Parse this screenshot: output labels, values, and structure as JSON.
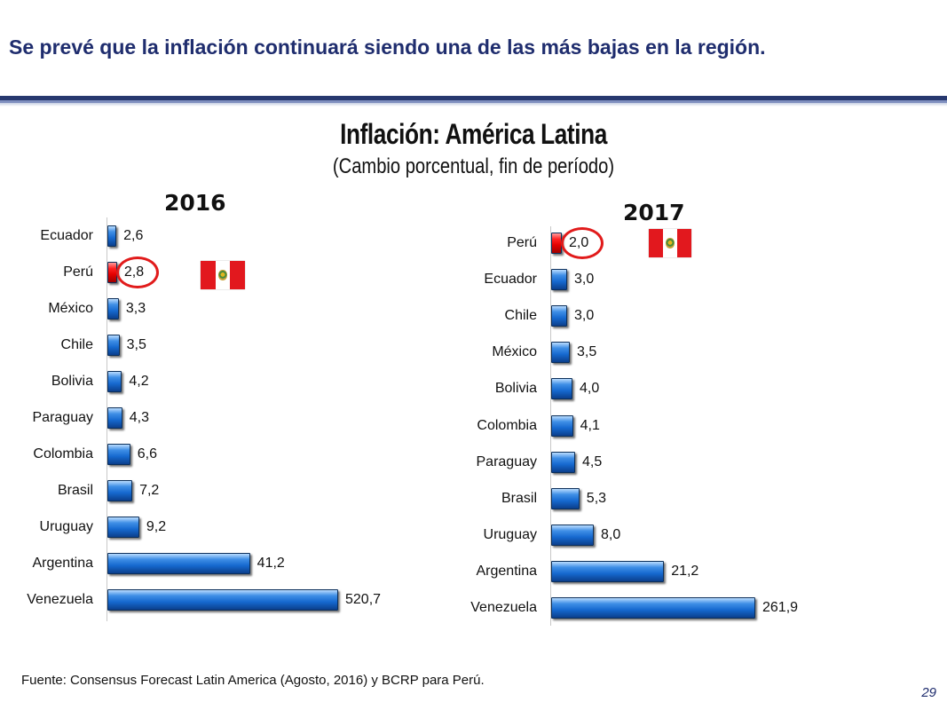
{
  "headline": "Se prevé que la inflación continuará siendo una de las más bajas en la región.",
  "colors": {
    "bar": "#1669cf",
    "highlight_bar": "#e30000",
    "headline": "#1f2d6e",
    "circle": "#e11b1b"
  },
  "chart_data": [
    {
      "type": "bar",
      "orientation": "horizontal",
      "title": "Inflación: América Latina",
      "subtitle": "(Cambio porcentual, fin de período)",
      "year": "2016",
      "categories": [
        "Ecuador",
        "Perú",
        "México",
        "Chile",
        "Bolivia",
        "Paraguay",
        "Colombia",
        "Brasil",
        "Uruguay",
        "Argentina",
        "Venezuela"
      ],
      "values": [
        2.6,
        2.8,
        3.3,
        3.5,
        4.2,
        4.3,
        6.6,
        7.2,
        9.2,
        41.2,
        520.7
      ],
      "labels": [
        "2,6",
        "2,8",
        "3,3",
        "3,5",
        "4,2",
        "4,3",
        "6,6",
        "7,2",
        "9,2",
        "41,2",
        "520,7"
      ],
      "highlight": "Perú",
      "scale": "broken (non-linear)"
    },
    {
      "type": "bar",
      "orientation": "horizontal",
      "year": "2017",
      "categories": [
        "Perú",
        "Ecuador",
        "Chile",
        "México",
        "Bolivia",
        "Colombia",
        "Paraguay",
        "Brasil",
        "Uruguay",
        "Argentina",
        "Venezuela"
      ],
      "values": [
        2.0,
        3.0,
        3.0,
        3.5,
        4.0,
        4.1,
        4.5,
        5.3,
        8.0,
        21.2,
        261.9
      ],
      "labels": [
        "2,0",
        "3,0",
        "3,0",
        "3,5",
        "4,0",
        "4,1",
        "4,5",
        "5,3",
        "8,0",
        "21,2",
        "261,9"
      ],
      "highlight": "Perú",
      "scale": "broken (non-linear)"
    }
  ],
  "icons": [
    "peru-flag-icon",
    "highlight-circle-icon"
  ],
  "source": "Fuente: Consensus Forecast Latin America  (Agosto, 2016) y BCRP para Perú.",
  "page_number": "29"
}
